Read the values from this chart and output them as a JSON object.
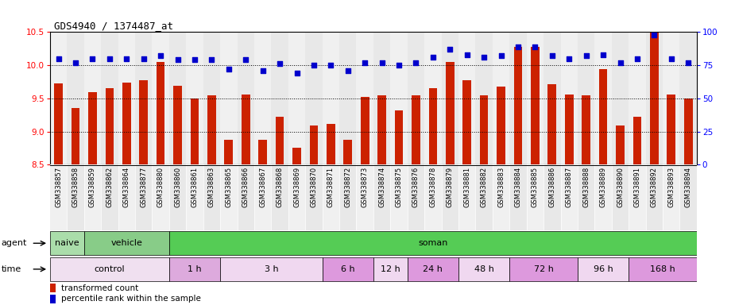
{
  "title": "GDS4940 / 1374487_at",
  "samples": [
    "GSM338857",
    "GSM338858",
    "GSM338859",
    "GSM338862",
    "GSM338864",
    "GSM338877",
    "GSM338880",
    "GSM338860",
    "GSM338861",
    "GSM338863",
    "GSM338865",
    "GSM338866",
    "GSM338867",
    "GSM338868",
    "GSM338869",
    "GSM338870",
    "GSM338871",
    "GSM338872",
    "GSM338873",
    "GSM338874",
    "GSM338875",
    "GSM338876",
    "GSM338878",
    "GSM338879",
    "GSM338881",
    "GSM338882",
    "GSM338883",
    "GSM338884",
    "GSM338885",
    "GSM338886",
    "GSM338887",
    "GSM338888",
    "GSM338889",
    "GSM338890",
    "GSM338891",
    "GSM338892",
    "GSM338893",
    "GSM338894"
  ],
  "bar_values": [
    9.72,
    9.36,
    9.59,
    9.65,
    9.74,
    9.77,
    10.05,
    9.69,
    9.5,
    9.54,
    8.88,
    9.56,
    8.88,
    9.22,
    8.76,
    9.09,
    9.11,
    8.88,
    9.52,
    9.54,
    9.32,
    9.54,
    9.65,
    10.05,
    9.77,
    9.55,
    9.68,
    10.28,
    10.28,
    9.71,
    9.56,
    9.55,
    9.94,
    9.09,
    9.22,
    10.5,
    9.56,
    9.5
  ],
  "percentile_values": [
    80,
    77,
    80,
    80,
    80,
    80,
    82,
    79,
    79,
    79,
    72,
    79,
    71,
    76,
    69,
    75,
    75,
    71,
    77,
    77,
    75,
    77,
    81,
    87,
    83,
    81,
    82,
    89,
    89,
    82,
    80,
    82,
    83,
    77,
    80,
    98,
    80,
    77
  ],
  "bar_color": "#cc2200",
  "dot_color": "#0000cc",
  "ylim_left": [
    8.5,
    10.5
  ],
  "ylim_right": [
    0,
    100
  ],
  "yticks_left": [
    8.5,
    9.0,
    9.5,
    10.0,
    10.5
  ],
  "yticks_right": [
    0,
    25,
    50,
    75,
    100
  ],
  "agent_groups": [
    {
      "label": "naive",
      "start": 0,
      "end": 2,
      "color": "#aaddaa"
    },
    {
      "label": "vehicle",
      "start": 2,
      "end": 7,
      "color": "#88cc88"
    },
    {
      "label": "soman",
      "start": 7,
      "end": 38,
      "color": "#55cc55"
    }
  ],
  "time_groups": [
    {
      "label": "control",
      "start": 0,
      "end": 7,
      "color": "#f0e0f0"
    },
    {
      "label": "1 h",
      "start": 7,
      "end": 10,
      "color": "#ddaadd"
    },
    {
      "label": "3 h",
      "start": 10,
      "end": 16,
      "color": "#f0d8f0"
    },
    {
      "label": "6 h",
      "start": 16,
      "end": 19,
      "color": "#dd99dd"
    },
    {
      "label": "12 h",
      "start": 19,
      "end": 21,
      "color": "#f0d8f0"
    },
    {
      "label": "24 h",
      "start": 21,
      "end": 24,
      "color": "#dd99dd"
    },
    {
      "label": "48 h",
      "start": 24,
      "end": 27,
      "color": "#f0d8f0"
    },
    {
      "label": "72 h",
      "start": 27,
      "end": 31,
      "color": "#dd99dd"
    },
    {
      "label": "96 h",
      "start": 31,
      "end": 34,
      "color": "#f0d8f0"
    },
    {
      "label": "168 h",
      "start": 34,
      "end": 38,
      "color": "#dd99dd"
    }
  ],
  "col_colors": [
    "#f0f0f0",
    "#e8e8e8"
  ],
  "background_color": "#ffffff",
  "plot_bg_color": "#ffffff"
}
